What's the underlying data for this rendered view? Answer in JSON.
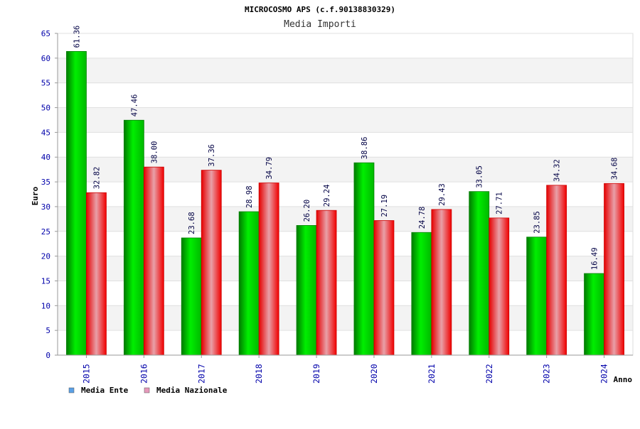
{
  "chart_data": {
    "type": "bar",
    "title": "MICROCOSMO APS (c.f.90138830329)",
    "subtitle": "Media Importi",
    "xlabel": "Anno",
    "ylabel": "Euro",
    "ylim": [
      0,
      65
    ],
    "yticks": [
      0,
      5,
      10,
      15,
      20,
      25,
      30,
      35,
      40,
      45,
      50,
      55,
      60,
      65
    ],
    "grid": true,
    "legend_position": "bottom-left",
    "categories": [
      "2015",
      "2016",
      "2017",
      "2018",
      "2019",
      "2020",
      "2021",
      "2022",
      "2023",
      "2024"
    ],
    "series": [
      {
        "name": "Media Ente",
        "color": "#00cc00",
        "legend_color": "#5aa0e6",
        "values": [
          61.36,
          47.46,
          23.68,
          28.98,
          26.2,
          38.86,
          24.78,
          33.05,
          23.85,
          16.49
        ],
        "labels": [
          "61.36",
          "47.46",
          "23.68",
          "28.98",
          "26.20",
          "38.86",
          "24.78",
          "33.05",
          "23.85",
          "16.49"
        ]
      },
      {
        "name": "Media Nazionale",
        "color": "#ee1111",
        "legend_color": "#e699bb",
        "values": [
          32.82,
          38.0,
          37.36,
          34.79,
          29.24,
          27.19,
          29.43,
          27.71,
          34.32,
          34.68
        ],
        "labels": [
          "32.82",
          "38.00",
          "37.36",
          "34.79",
          "29.24",
          "27.19",
          "29.43",
          "27.71",
          "34.32",
          "34.68"
        ]
      }
    ]
  }
}
